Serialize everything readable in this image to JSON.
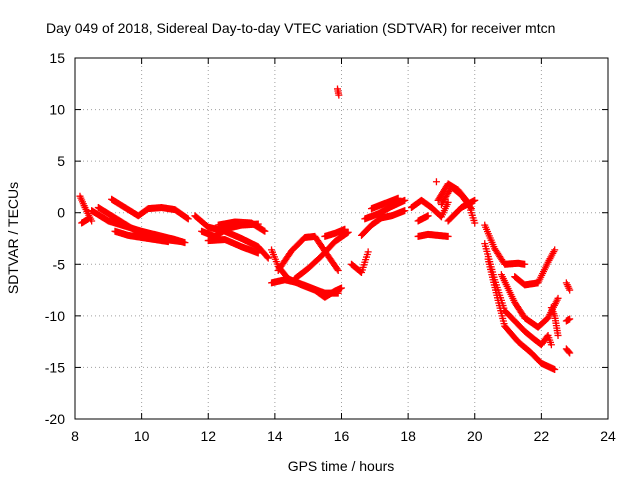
{
  "chart_data": {
    "type": "scatter",
    "title": "Day 049 of 2018, Sidereal Day-to-day VTEC variation (SDTVAR) for receiver mtcn",
    "xlabel": "GPS time / hours",
    "ylabel": "SDTVAR / TECUs",
    "xlim": [
      8,
      24
    ],
    "ylim": [
      -20,
      15
    ],
    "xticks": [
      8,
      10,
      12,
      14,
      16,
      18,
      20,
      22,
      24
    ],
    "yticks": [
      -20,
      -15,
      -10,
      -5,
      0,
      5,
      10,
      15
    ],
    "grid": true,
    "marker": "+",
    "color": "#ff0000",
    "tracks": [
      [
        [
          8.15,
          1.6
        ],
        [
          8.3,
          0.5
        ],
        [
          8.5,
          -0.8
        ]
      ],
      [
        [
          8.2,
          -1.0
        ],
        [
          8.4,
          -0.6
        ]
      ],
      [
        [
          8.5,
          0.2
        ],
        [
          9.0,
          -0.8
        ],
        [
          9.5,
          -1.3
        ],
        [
          10.0,
          -1.8
        ],
        [
          10.5,
          -2.2
        ],
        [
          11.0,
          -2.6
        ],
        [
          11.3,
          -2.9
        ]
      ],
      [
        [
          8.7,
          0.5
        ],
        [
          9.2,
          -0.5
        ],
        [
          9.7,
          -1.5
        ],
        [
          10.2,
          -2.4
        ],
        [
          10.7,
          -2.6
        ],
        [
          11.2,
          -2.8
        ]
      ],
      [
        [
          9.1,
          1.3
        ],
        [
          9.5,
          0.5
        ],
        [
          9.9,
          -0.3
        ],
        [
          10.2,
          0.4
        ],
        [
          10.6,
          0.5
        ],
        [
          11.0,
          0.3
        ],
        [
          11.4,
          -0.6
        ]
      ],
      [
        [
          9.2,
          -1.8
        ],
        [
          9.6,
          -2.2
        ],
        [
          10.0,
          -2.4
        ],
        [
          10.4,
          -2.6
        ],
        [
          10.8,
          -2.8
        ]
      ],
      [
        [
          11.6,
          -0.3
        ],
        [
          12.0,
          -1.4
        ],
        [
          12.5,
          -1.8
        ],
        [
          13.0,
          -2.5
        ],
        [
          13.5,
          -3.3
        ],
        [
          13.8,
          -4.4
        ]
      ],
      [
        [
          11.8,
          -1.8
        ],
        [
          12.2,
          -2.3
        ],
        [
          12.6,
          -1.5
        ],
        [
          13.0,
          -1.2
        ],
        [
          13.5,
          -1.1
        ]
      ],
      [
        [
          12.3,
          -1.2
        ],
        [
          12.8,
          -0.9
        ],
        [
          13.3,
          -1.0
        ],
        [
          13.7,
          -1.8
        ]
      ],
      [
        [
          12.0,
          -2.7
        ],
        [
          12.5,
          -2.6
        ],
        [
          13.0,
          -3.3
        ],
        [
          13.5,
          -3.9
        ]
      ],
      [
        [
          13.9,
          -3.6
        ],
        [
          14.1,
          -5.2
        ],
        [
          14.4,
          -6.4
        ],
        [
          14.8,
          -7.0
        ],
        [
          15.2,
          -7.5
        ],
        [
          15.5,
          -8.2
        ],
        [
          15.8,
          -7.6
        ],
        [
          16.0,
          -7.3
        ]
      ],
      [
        [
          13.9,
          -6.8
        ],
        [
          14.3,
          -6.5
        ],
        [
          14.7,
          -6.8
        ],
        [
          15.1,
          -7.3
        ],
        [
          15.5,
          -7.8
        ],
        [
          15.9,
          -7.8
        ]
      ],
      [
        [
          14.1,
          -5.6
        ],
        [
          14.5,
          -3.7
        ],
        [
          14.9,
          -2.4
        ],
        [
          15.2,
          -2.3
        ],
        [
          15.6,
          -4.2
        ],
        [
          15.9,
          -5.6
        ]
      ],
      [
        [
          14.6,
          -6.4
        ],
        [
          15.0,
          -5.4
        ],
        [
          15.4,
          -4.2
        ],
        [
          15.8,
          -2.8
        ],
        [
          16.2,
          -1.9
        ]
      ],
      [
        [
          15.5,
          -2.3
        ],
        [
          15.8,
          -2.0
        ],
        [
          16.1,
          -1.6
        ]
      ],
      [
        [
          15.88,
          12.0
        ],
        [
          15.92,
          11.4
        ]
      ],
      [
        [
          16.3,
          -5.0
        ],
        [
          16.6,
          -5.8
        ],
        [
          16.8,
          -3.8
        ]
      ],
      [
        [
          16.6,
          -2.2
        ],
        [
          16.9,
          -1.2
        ],
        [
          17.2,
          -0.5
        ],
        [
          17.5,
          -0.3
        ],
        [
          17.9,
          0.2
        ]
      ],
      [
        [
          16.7,
          -0.6
        ],
        [
          17.1,
          -0.1
        ],
        [
          17.5,
          0.6
        ],
        [
          17.9,
          1.2
        ]
      ],
      [
        [
          16.9,
          0.4
        ],
        [
          17.3,
          0.9
        ],
        [
          17.7,
          1.4
        ]
      ],
      [
        [
          18.1,
          0.5
        ],
        [
          18.4,
          1.2
        ],
        [
          18.7,
          0.5
        ],
        [
          19.0,
          -0.4
        ],
        [
          19.2,
          1.0
        ]
      ],
      [
        [
          18.3,
          -0.8
        ],
        [
          18.6,
          -0.3
        ]
      ],
      [
        [
          18.3,
          -2.3
        ],
        [
          18.6,
          -2.1
        ],
        [
          18.9,
          -2.2
        ],
        [
          19.2,
          -2.3
        ]
      ],
      [
        [
          18.85,
          3.0
        ]
      ],
      [
        [
          18.9,
          1.2
        ],
        [
          19.2,
          2.8
        ],
        [
          19.5,
          2.2
        ],
        [
          19.8,
          1.0
        ],
        [
          20.0,
          -1.0
        ]
      ],
      [
        [
          19.0,
          0.8
        ],
        [
          19.3,
          2.5
        ],
        [
          19.6,
          1.7
        ],
        [
          19.9,
          0.4
        ]
      ],
      [
        [
          19.2,
          -0.8
        ],
        [
          19.6,
          0.5
        ],
        [
          20.0,
          1.2
        ]
      ],
      [
        [
          20.3,
          -1.2
        ],
        [
          20.6,
          -3.5
        ],
        [
          20.9,
          -5.0
        ],
        [
          21.3,
          -4.9
        ],
        [
          21.5,
          -5.0
        ]
      ],
      [
        [
          20.3,
          -3.0
        ],
        [
          20.6,
          -6.5
        ],
        [
          20.9,
          -9.5
        ],
        [
          21.2,
          -10.5
        ],
        [
          21.5,
          -11.5
        ],
        [
          21.8,
          -12.3
        ],
        [
          22.0,
          -12.8
        ],
        [
          22.2,
          -11.9
        ],
        [
          22.3,
          -12.8
        ]
      ],
      [
        [
          20.4,
          -4.5
        ],
        [
          20.7,
          -8.5
        ],
        [
          20.9,
          -11.0
        ],
        [
          21.3,
          -12.5
        ],
        [
          21.7,
          -13.6
        ],
        [
          22.0,
          -14.6
        ],
        [
          22.4,
          -15.2
        ]
      ],
      [
        [
          20.8,
          -6.0
        ],
        [
          21.2,
          -8.7
        ],
        [
          21.5,
          -10.2
        ],
        [
          21.9,
          -11.1
        ],
        [
          22.2,
          -10.2
        ],
        [
          22.5,
          -8.3
        ]
      ],
      [
        [
          21.2,
          -6.2
        ],
        [
          21.5,
          -7.0
        ],
        [
          21.9,
          -6.8
        ],
        [
          22.2,
          -4.8
        ],
        [
          22.4,
          -3.6
        ]
      ],
      [
        [
          22.5,
          -11.9
        ],
        [
          22.4,
          -10.0
        ],
        [
          22.3,
          -9.2
        ]
      ],
      [
        [
          22.75,
          -6.8
        ],
        [
          22.85,
          -7.5
        ]
      ],
      [
        [
          22.75,
          -10.5
        ],
        [
          22.85,
          -10.3
        ]
      ],
      [
        [
          22.75,
          -13.2
        ],
        [
          22.85,
          -13.6
        ]
      ]
    ]
  }
}
